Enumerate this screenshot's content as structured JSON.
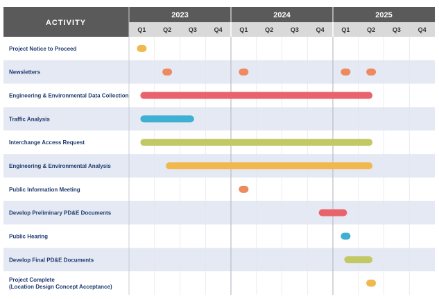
{
  "header": {
    "activity_label": "ACTIVITY",
    "years": [
      "2023",
      "2024",
      "2025"
    ],
    "quarters": [
      "Q1",
      "Q2",
      "Q3",
      "Q4"
    ]
  },
  "colors": {
    "header_dark": "#5a5a5a",
    "header_light": "#d9d9d9",
    "row_alt": "#e4e9f4",
    "row_plain": "#ffffff",
    "text_dark": "#1f3b6e",
    "red": "#e8636b",
    "orange": "#ee8a5e",
    "yellow": "#f0b84d",
    "blue": "#3fb0d4",
    "green": "#c2c964"
  },
  "chart_data": {
    "type": "gantt",
    "time_unit": "quarter",
    "x_range": [
      "2023 Q1",
      "2025 Q4"
    ],
    "tasks": [
      {
        "label": "Project Notice to Proceed",
        "color": "yellow",
        "segments": [
          {
            "start": "2023 Q1",
            "end": "2023 Q1",
            "type": "milestone"
          }
        ]
      },
      {
        "label": "Newsletters",
        "color": "orange",
        "segments": [
          {
            "start": "2023 Q2",
            "end": "2023 Q2",
            "type": "milestone"
          },
          {
            "start": "2024 Q1",
            "end": "2024 Q1",
            "type": "milestone"
          },
          {
            "start": "2025 Q1",
            "end": "2025 Q1",
            "type": "milestone"
          },
          {
            "start": "2025 Q2",
            "end": "2025 Q2",
            "type": "milestone"
          }
        ]
      },
      {
        "label": "Engineering & Environmental Data Collection",
        "color": "red",
        "segments": [
          {
            "start": "2023 Q1",
            "end": "2025 Q2"
          }
        ]
      },
      {
        "label": "Traffic Analysis",
        "color": "blue",
        "segments": [
          {
            "start": "2023 Q1",
            "end": "2023 Q3"
          }
        ]
      },
      {
        "label": "Interchange Access Request",
        "color": "green",
        "segments": [
          {
            "start": "2023 Q1",
            "end": "2025 Q2"
          }
        ]
      },
      {
        "label": "Engineering & Environmental Analysis",
        "color": "yellow",
        "segments": [
          {
            "start": "2023 Q2",
            "end": "2025 Q2"
          }
        ]
      },
      {
        "label": "Public Information Meeting",
        "color": "orange",
        "segments": [
          {
            "start": "2024 Q1",
            "end": "2024 Q1",
            "type": "milestone"
          }
        ]
      },
      {
        "label": "Develop Preliminary PD&E Documents",
        "color": "red",
        "segments": [
          {
            "start": "2024 Q4",
            "end": "2025 Q1"
          }
        ]
      },
      {
        "label": "Public Hearing",
        "color": "blue",
        "segments": [
          {
            "start": "2025 Q1",
            "end": "2025 Q1",
            "type": "milestone"
          }
        ]
      },
      {
        "label": "Develop Final PD&E Documents",
        "color": "green",
        "segments": [
          {
            "start": "2025 Q1",
            "end": "2025 Q2"
          }
        ]
      },
      {
        "label": "Project Complete\n(Location Design Concept Acceptance)",
        "color": "yellow",
        "segments": [
          {
            "start": "2025 Q2",
            "end": "2025 Q2",
            "type": "milestone"
          }
        ]
      }
    ]
  }
}
